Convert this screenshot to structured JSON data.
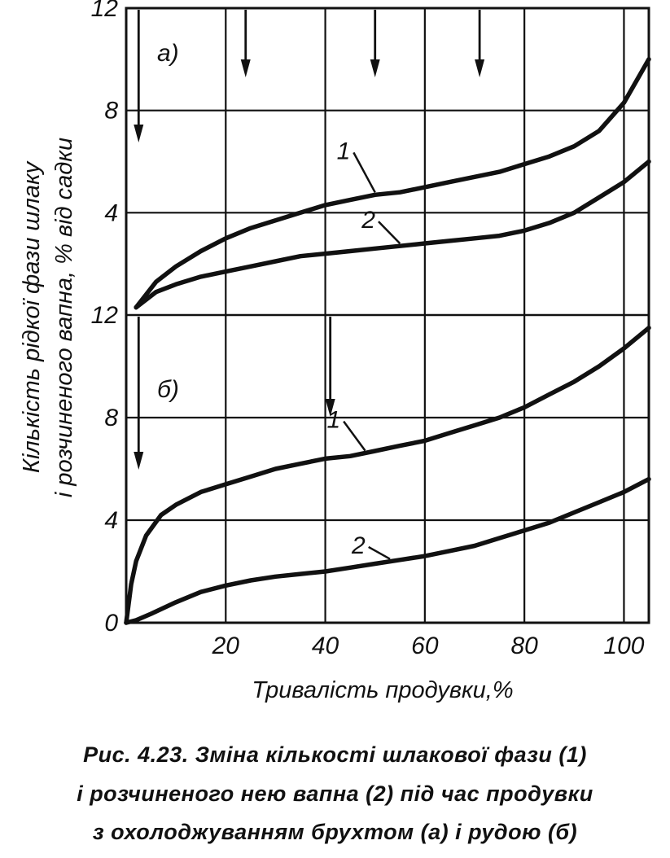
{
  "chart_data": {
    "type": "line",
    "xlabel": "Тривалість продувки,%",
    "ylabel_line1": "Кількість рідкої фази шлаку",
    "ylabel_line2": "і розчиненого вапна, % від садки",
    "xlim": [
      0,
      105
    ],
    "x_ticks": [
      "20",
      "40",
      "60",
      "80",
      "100"
    ],
    "grid": true,
    "panels": [
      {
        "label": "а)",
        "ylim": [
          0,
          12
        ],
        "y_ticks": [
          "4",
          "8",
          "12"
        ],
        "arrows_x": [
          2.5,
          24,
          50,
          71
        ],
        "series": [
          {
            "name": "1",
            "x": [
              2,
              6,
              10,
              15,
              20,
              25,
              30,
              35,
              40,
              45,
              50,
              55,
              60,
              65,
              70,
              75,
              80,
              85,
              90,
              95,
              100,
              105
            ],
            "y": [
              0.3,
              1.3,
              1.9,
              2.5,
              3.0,
              3.4,
              3.7,
              4.0,
              4.3,
              4.5,
              4.7,
              4.8,
              5.0,
              5.2,
              5.4,
              5.6,
              5.9,
              6.2,
              6.6,
              7.2,
              8.3,
              10.0
            ]
          },
          {
            "name": "2",
            "x": [
              2,
              6,
              10,
              15,
              20,
              25,
              30,
              35,
              40,
              45,
              50,
              55,
              60,
              65,
              70,
              75,
              80,
              85,
              90,
              95,
              100,
              105
            ],
            "y": [
              0.3,
              0.9,
              1.2,
              1.5,
              1.7,
              1.9,
              2.1,
              2.3,
              2.4,
              2.5,
              2.6,
              2.7,
              2.8,
              2.9,
              3.0,
              3.1,
              3.3,
              3.6,
              4.0,
              4.6,
              5.2,
              6.0
            ]
          }
        ],
        "series_label_pos": [
          [
            47,
            6.1
          ],
          [
            52,
            3.4
          ]
        ]
      },
      {
        "label": "б)",
        "ylim": [
          0,
          12
        ],
        "y_ticks": [
          "0",
          "4",
          "8",
          "12"
        ],
        "arrows_x": [
          2.5,
          41
        ],
        "series": [
          {
            "name": "1",
            "x": [
              0,
              1,
              2,
              4,
              7,
              10,
              15,
              20,
              25,
              30,
              35,
              40,
              45,
              50,
              55,
              60,
              65,
              70,
              75,
              80,
              85,
              90,
              95,
              100,
              105
            ],
            "y": [
              0,
              1.5,
              2.4,
              3.4,
              4.2,
              4.6,
              5.1,
              5.4,
              5.7,
              6.0,
              6.2,
              6.4,
              6.5,
              6.7,
              6.9,
              7.1,
              7.4,
              7.7,
              8.0,
              8.4,
              8.9,
              9.4,
              10.0,
              10.7,
              11.5
            ]
          },
          {
            "name": "2",
            "x": [
              0,
              2,
              5,
              10,
              15,
              20,
              25,
              30,
              35,
              40,
              45,
              50,
              55,
              60,
              65,
              70,
              75,
              80,
              85,
              90,
              95,
              100,
              105
            ],
            "y": [
              0,
              0.1,
              0.35,
              0.8,
              1.2,
              1.45,
              1.65,
              1.8,
              1.9,
              2.0,
              2.15,
              2.3,
              2.45,
              2.6,
              2.8,
              3.0,
              3.3,
              3.6,
              3.9,
              4.3,
              4.7,
              5.1,
              5.6
            ]
          }
        ],
        "series_label_pos": [
          [
            45,
            7.6
          ],
          [
            50,
            2.7
          ]
        ]
      }
    ]
  },
  "caption": {
    "line1": "Рис. 4.23. Зміна кількості шлакової фази (1)",
    "line2": "і розчиненого нею вапна (2) під час продувки",
    "line3": "з охолоджуванням брухтом (а) і рудою (б)"
  }
}
